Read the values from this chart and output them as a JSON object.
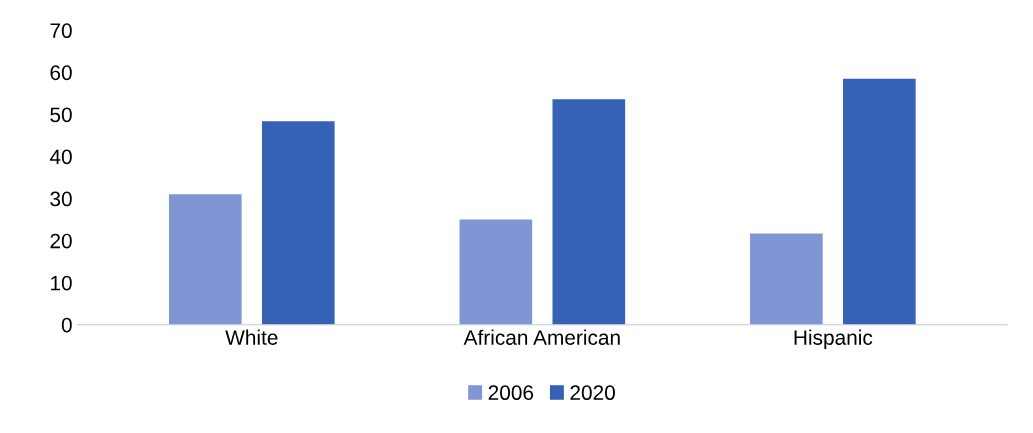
{
  "chart_data": {
    "type": "bar",
    "categories": [
      "White",
      "African American",
      "Hispanic"
    ],
    "series": [
      {
        "name": "2006",
        "color": "#8096d4",
        "values": [
          31,
          25,
          21.7
        ]
      },
      {
        "name": "2020",
        "color": "#3562b4",
        "values": [
          48.4,
          53.6,
          58.5
        ]
      }
    ],
    "ylim": [
      0,
      70
    ],
    "yticks": [
      0,
      10,
      20,
      30,
      40,
      50,
      60,
      70
    ],
    "grid": false,
    "legend": "bottom"
  }
}
